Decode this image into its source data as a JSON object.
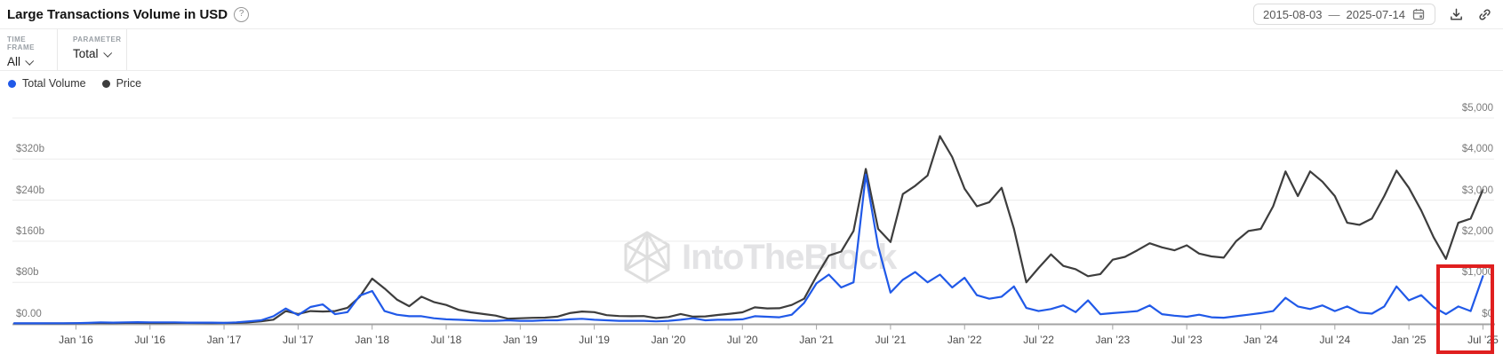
{
  "header": {
    "title": "Large Transactions Volume in USD",
    "date_range": {
      "start": "2015-08-03",
      "separator": "—",
      "end": "2025-07-14"
    }
  },
  "icons": {
    "help": "?"
  },
  "controls": {
    "time_frame": {
      "label": "TIME FRAME",
      "value": "All"
    },
    "parameter": {
      "label": "PARAMETER",
      "value": "Total"
    }
  },
  "legend": [
    {
      "label": "Total Volume",
      "color": "#2059e8"
    },
    {
      "label": "Price",
      "color": "#3d3d3d"
    }
  ],
  "watermark": {
    "text": "IntoTheBlock"
  },
  "chart_data": {
    "type": "line",
    "title": "Large Transactions Volume in USD",
    "x_start": "2015-08",
    "x_end": "2025-07",
    "x_unit": "month",
    "grid": true,
    "left_axis": {
      "tick_labels": [
        "$0.00",
        "$80b",
        "$160b",
        "$240b",
        "$320b"
      ],
      "tick_values": [
        0,
        80,
        160,
        240,
        320
      ],
      "units": "billion USD",
      "units_per_gridline": 80
    },
    "right_axis": {
      "tick_labels": [
        "$0",
        "$1,000",
        "$2,000",
        "$3,000",
        "$4,000",
        "$5,000"
      ],
      "tick_values": [
        0,
        1000,
        2000,
        3000,
        4000,
        5000
      ],
      "units": "USD",
      "units_per_gridline": 1000
    },
    "x_ticks": [
      {
        "label": "Jan ’16",
        "month_offset": 5
      },
      {
        "label": "Jul ’16",
        "month_offset": 11
      },
      {
        "label": "Jan ’17",
        "month_offset": 17
      },
      {
        "label": "Jul ’17",
        "month_offset": 23
      },
      {
        "label": "Jan ’18",
        "month_offset": 29
      },
      {
        "label": "Jul ’18",
        "month_offset": 35
      },
      {
        "label": "Jan ’19",
        "month_offset": 41
      },
      {
        "label": "Jul ’19",
        "month_offset": 47
      },
      {
        "label": "Jan ’20",
        "month_offset": 53
      },
      {
        "label": "Jul ’20",
        "month_offset": 59
      },
      {
        "label": "Jan ’21",
        "month_offset": 65
      },
      {
        "label": "Jul ’21",
        "month_offset": 71
      },
      {
        "label": "Jan ’22",
        "month_offset": 77
      },
      {
        "label": "Jul ’22",
        "month_offset": 83
      },
      {
        "label": "Jan ’23",
        "month_offset": 89
      },
      {
        "label": "Jul ’23",
        "month_offset": 95
      },
      {
        "label": "Jan ’24",
        "month_offset": 101
      },
      {
        "label": "Jul ’24",
        "month_offset": 107
      },
      {
        "label": "Jan ’25",
        "month_offset": 113
      },
      {
        "label": "Jul ’25",
        "month_offset": 119
      }
    ],
    "series": [
      {
        "name": "Price",
        "axis": "right",
        "color": "#3d3d3d",
        "values": [
          1,
          1,
          1,
          1,
          1,
          2,
          6,
          11,
          9,
          12,
          14,
          11,
          11,
          13,
          12,
          10,
          8,
          10,
          13,
          25,
          50,
          90,
          300,
          230,
          300,
          290,
          300,
          380,
          650,
          1090,
          850,
          580,
          420,
          650,
          520,
          450,
          330,
          270,
          230,
          190,
          115,
          125,
          135,
          140,
          165,
          250,
          290,
          275,
          200,
          180,
          175,
          180,
          130,
          155,
          230,
          165,
          170,
          205,
          235,
          270,
          390,
          365,
          370,
          450,
          600,
          1150,
          1650,
          1750,
          2250,
          3760,
          2300,
          1980,
          3150,
          3350,
          3600,
          4560,
          4050,
          3280,
          2850,
          2950,
          3300,
          2300,
          1000,
          1350,
          1680,
          1400,
          1320,
          1150,
          1200,
          1550,
          1620,
          1780,
          1950,
          1850,
          1780,
          1900,
          1700,
          1630,
          1600,
          2000,
          2250,
          2300,
          2850,
          3700,
          3100,
          3700,
          3450,
          3100,
          2450,
          2400,
          2550,
          3100,
          3720,
          3300,
          2750,
          2100,
          1570,
          2450,
          2550,
          3250
        ]
      },
      {
        "name": "Total Volume",
        "axis": "left",
        "color": "#2059e8",
        "values": [
          0.1,
          0.1,
          0.2,
          0.3,
          0.3,
          0.5,
          1,
          2,
          1.5,
          2,
          2.5,
          2,
          2,
          2,
          1.5,
          1.5,
          1.5,
          1,
          2,
          4,
          6,
          14,
          29,
          16,
          32,
          37,
          18,
          22,
          54,
          63,
          24,
          17,
          14,
          14,
          10,
          8,
          7,
          6,
          5,
          5,
          6,
          5,
          5,
          6,
          6,
          8,
          9,
          7,
          6,
          5,
          5,
          5,
          4,
          5,
          7,
          10,
          6,
          7,
          7,
          8,
          14,
          13,
          12,
          17,
          40,
          78,
          95,
          70,
          80,
          290,
          150,
          60,
          85,
          100,
          80,
          95,
          70,
          89,
          55,
          48,
          52,
          72,
          30,
          24,
          28,
          35,
          22,
          45,
          18,
          20,
          22,
          24,
          35,
          18,
          15,
          13,
          17,
          12,
          11,
          14,
          17,
          20,
          24,
          50,
          33,
          28,
          35,
          24,
          33,
          21,
          19,
          33,
          72,
          45,
          55,
          32,
          18,
          33,
          24,
          92
        ]
      }
    ],
    "highlight_box": {
      "from": "2025-04",
      "to": "2025-07",
      "color": "#e01f1f"
    }
  }
}
